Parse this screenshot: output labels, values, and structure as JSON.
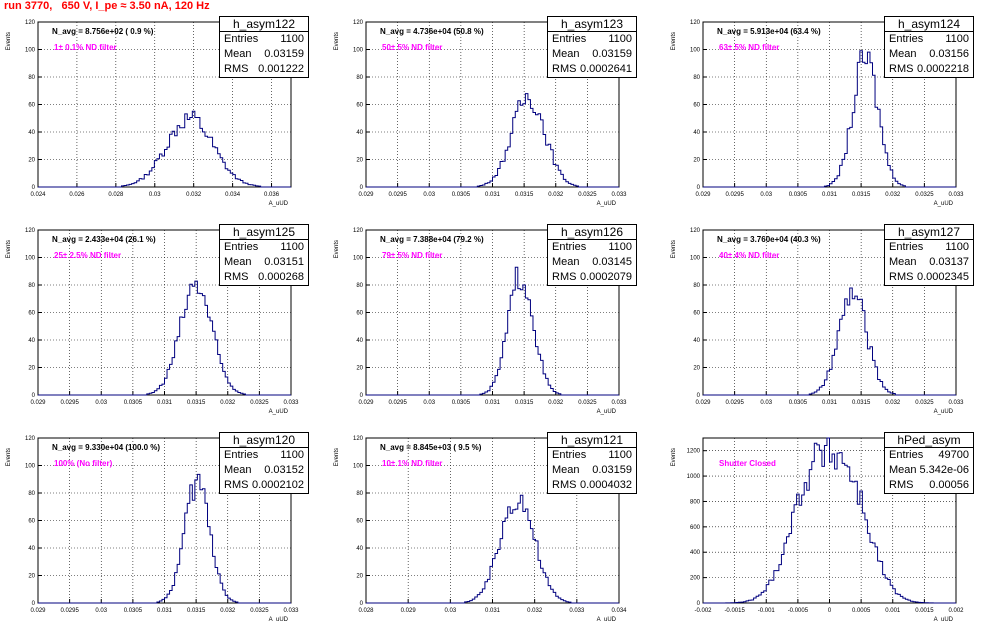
{
  "title": "run 3770,   650 V, I_pe ≈ 3.50 nA, 120 Hz",
  "colors": {
    "title": "#ff0000",
    "histogram": "#00007f",
    "annotation": "#ff00ff",
    "grid": "#000000"
  },
  "chart_data": [
    {
      "type": "histogram",
      "name": "h_asym122",
      "ylabel": "Events",
      "xlabel": "A_uUD",
      "navg_text": "N_avg = 8.756e+02 ( 0.9 %)",
      "filter_text": "1± 0.1% ND filter",
      "stats": {
        "entries": "1100",
        "mean": "0.03159",
        "rms": "0.001222"
      },
      "xlim": [
        0.024,
        0.037
      ],
      "ylim": [
        0,
        120
      ],
      "xticks": [
        "0.024",
        "0.026",
        "0.028",
        "0.03",
        "0.032",
        "0.034",
        "0.036"
      ],
      "yticks": [
        "0",
        "20",
        "40",
        "60",
        "80",
        "100",
        "120"
      ],
      "peak": 0.0318,
      "width": 0.0012,
      "height": 50
    },
    {
      "type": "histogram",
      "name": "h_asym123",
      "ylabel": "Events",
      "xlabel": "A_uUD",
      "navg_text": "N_avg = 4.736e+04 (50.8 %)",
      "filter_text": "50± 5% ND filter",
      "stats": {
        "entries": "1100",
        "mean": "0.03159",
        "rms": "0.0002641"
      },
      "xlim": [
        0.029,
        0.033
      ],
      "ylim": [
        0,
        120
      ],
      "xticks": [
        "0.029",
        "0.0295",
        "0.03",
        "0.0305",
        "0.031",
        "0.0315",
        "0.032",
        "0.0325",
        "0.033"
      ],
      "yticks": [
        "0",
        "20",
        "40",
        "60",
        "80",
        "100",
        "120"
      ],
      "peak": 0.03157,
      "width": 0.00026,
      "height": 66
    },
    {
      "type": "histogram",
      "name": "h_asym124",
      "ylabel": "Events",
      "xlabel": "A_uUD",
      "navg_text": "N_avg = 5.913e+04 (63.4 %)",
      "filter_text": "63± 5% ND filter",
      "stats": {
        "entries": "1100",
        "mean": "0.03156",
        "rms": "0.0002218"
      },
      "xlim": [
        0.029,
        0.033
      ],
      "ylim": [
        0,
        120
      ],
      "xticks": [
        "0.029",
        "0.0295",
        "0.03",
        "0.0305",
        "0.031",
        "0.0315",
        "0.032",
        "0.0325",
        "0.033"
      ],
      "yticks": [
        "0",
        "20",
        "40",
        "60",
        "80",
        "100",
        "120"
      ],
      "peak": 0.03157,
      "width": 0.0002,
      "height": 93
    },
    {
      "type": "histogram",
      "name": "h_asym125",
      "ylabel": "Events",
      "xlabel": "A_uUD",
      "navg_text": "N_avg = 2.433e+04 (26.1 %)",
      "filter_text": "25± 2.5% ND filter",
      "stats": {
        "entries": "1100",
        "mean": "0.03151",
        "rms": "0.000268"
      },
      "xlim": [
        0.029,
        0.033
      ],
      "ylim": [
        0,
        120
      ],
      "xticks": [
        "0.029",
        "0.0295",
        "0.03",
        "0.0305",
        "0.031",
        "0.0315",
        "0.032",
        "0.0325",
        "0.033"
      ],
      "yticks": [
        "0",
        "20",
        "40",
        "60",
        "80",
        "100",
        "120"
      ],
      "peak": 0.0315,
      "width": 0.00025,
      "height": 80
    },
    {
      "type": "histogram",
      "name": "h_asym126",
      "ylabel": "Events",
      "xlabel": "A_uUD",
      "navg_text": "N_avg = 7.388e+04 (79.2 %)",
      "filter_text": "79± 5% ND filter",
      "stats": {
        "entries": "1100",
        "mean": "0.03145",
        "rms": "0.0002079"
      },
      "xlim": [
        0.029,
        0.033
      ],
      "ylim": [
        0,
        120
      ],
      "xticks": [
        "0.029",
        "0.0295",
        "0.03",
        "0.0305",
        "0.031",
        "0.0315",
        "0.032",
        "0.0325",
        "0.033"
      ],
      "yticks": [
        "0",
        "20",
        "40",
        "60",
        "80",
        "100",
        "120"
      ],
      "peak": 0.03145,
      "width": 0.0002,
      "height": 88
    },
    {
      "type": "histogram",
      "name": "h_asym127",
      "ylabel": "Events",
      "xlabel": "A_uUD",
      "navg_text": "N_avg = 3.760e+04 (40.3 %)",
      "filter_text": "40± 4% ND filter",
      "stats": {
        "entries": "1100",
        "mean": "0.03137",
        "rms": "0.0002345"
      },
      "xlim": [
        0.029,
        0.033
      ],
      "ylim": [
        0,
        120
      ],
      "xticks": [
        "0.029",
        "0.0295",
        "0.03",
        "0.0305",
        "0.031",
        "0.0315",
        "0.032",
        "0.0325",
        "0.033"
      ],
      "yticks": [
        "0",
        "20",
        "40",
        "60",
        "80",
        "100",
        "120"
      ],
      "peak": 0.03137,
      "width": 0.00022,
      "height": 74
    },
    {
      "type": "histogram",
      "name": "h_asym120",
      "ylabel": "Events",
      "xlabel": "A_uUD",
      "navg_text": "N_avg = 9.330e+04 (100.0 %)",
      "filter_text": "100% (No filter)",
      "stats": {
        "entries": "1100",
        "mean": "0.03152",
        "rms": "0.0002102"
      },
      "xlim": [
        0.029,
        0.033
      ],
      "ylim": [
        0,
        120
      ],
      "xticks": [
        "0.029",
        "0.0295",
        "0.03",
        "0.0305",
        "0.031",
        "0.0315",
        "0.032",
        "0.0325",
        "0.033"
      ],
      "yticks": [
        "0",
        "20",
        "40",
        "60",
        "80",
        "100",
        "120"
      ],
      "peak": 0.03152,
      "width": 0.0002,
      "height": 88
    },
    {
      "type": "histogram",
      "name": "h_asym121",
      "ylabel": "Events",
      "xlabel": "A_uUD",
      "navg_text": "N_avg = 8.845e+03 ( 9.5 %)",
      "filter_text": "10± 1% ND filter",
      "stats": {
        "entries": "1100",
        "mean": "0.03159",
        "rms": "0.0004032"
      },
      "xlim": [
        0.028,
        0.034
      ],
      "ylim": [
        0,
        120
      ],
      "xticks": [
        "0.028",
        "0.029",
        "0.03",
        "0.031",
        "0.032",
        "0.033",
        "0.034"
      ],
      "yticks": [
        "0",
        "20",
        "40",
        "60",
        "80",
        "100",
        "120"
      ],
      "peak": 0.03159,
      "width": 0.0004,
      "height": 78
    },
    {
      "type": "histogram",
      "name": "hPed_asym",
      "ylabel": "Events",
      "xlabel": "A_uUD",
      "navg_text": "",
      "filter_text": "Shutter Closed",
      "stats": {
        "entries": "49700",
        "mean": "5.342e-06",
        "rms": "0.00056"
      },
      "xlim": [
        -0.002,
        0.002
      ],
      "ylim": [
        0,
        1300
      ],
      "xticks": [
        "-0.002",
        "-0.0015",
        "-0.001",
        "-0.0005",
        "0",
        "0.0005",
        "0.001",
        "0.0015",
        "0.002"
      ],
      "yticks": [
        "0",
        "200",
        "400",
        "600",
        "800",
        "1000",
        "1200"
      ],
      "peak": 0.0,
      "width": 0.00056,
      "height": 1200
    }
  ]
}
